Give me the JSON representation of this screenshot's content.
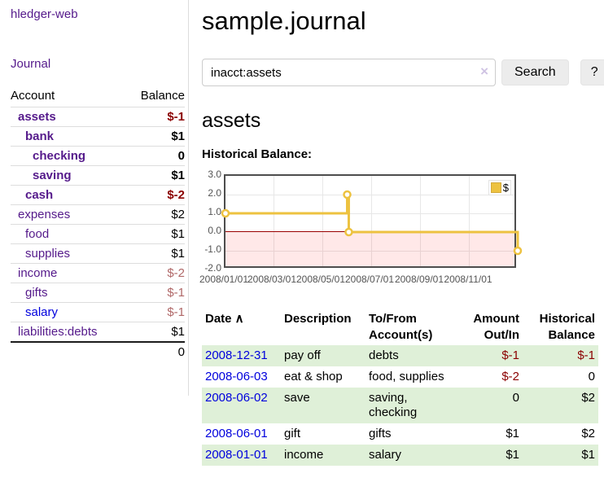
{
  "app": {
    "title": "hledger-web"
  },
  "colors": {
    "link_purple": "#551a8b",
    "link_blue": "#0000dd",
    "negative_strong": "#8b0000",
    "negative_soft": "#b06868",
    "row_green": "#dff0d8",
    "chart_line": "#edc240",
    "chart_border": "#4d4d4d",
    "negative_region": "rgba(255,0,0,0.09)",
    "zero_line": "#990000",
    "divider": "#dddddd"
  },
  "sidebar": {
    "nav_journal": "Journal",
    "accounts_table": {
      "headers": {
        "account": "Account",
        "balance": "Balance"
      },
      "rows": [
        {
          "account": "assets",
          "balance": "$-1",
          "depth": 1,
          "bold": true,
          "negative": true,
          "unvisited": false
        },
        {
          "account": "bank",
          "balance": "$1",
          "depth": 2,
          "bold": true,
          "negative": false,
          "unvisited": false
        },
        {
          "account": "checking",
          "balance": "0",
          "depth": 3,
          "bold": true,
          "negative": false,
          "unvisited": false
        },
        {
          "account": "saving",
          "balance": "$1",
          "depth": 3,
          "bold": true,
          "negative": false,
          "unvisited": false
        },
        {
          "account": "cash",
          "balance": "$-2",
          "depth": 2,
          "bold": true,
          "negative": true,
          "unvisited": false
        },
        {
          "account": "expenses",
          "balance": "$2",
          "depth": 1,
          "bold": false,
          "negative": false,
          "unvisited": false
        },
        {
          "account": "food",
          "balance": "$1",
          "depth": 2,
          "bold": false,
          "negative": false,
          "unvisited": false
        },
        {
          "account": "supplies",
          "balance": "$1",
          "depth": 2,
          "bold": false,
          "negative": false,
          "unvisited": false
        },
        {
          "account": "income",
          "balance": "$-2",
          "depth": 1,
          "bold": false,
          "negative": true,
          "unvisited": false
        },
        {
          "account": "gifts",
          "balance": "$-1",
          "depth": 2,
          "bold": false,
          "negative": true,
          "unvisited": false
        },
        {
          "account": "salary",
          "balance": "$-1",
          "depth": 2,
          "bold": false,
          "negative": true,
          "unvisited": true
        },
        {
          "account": "liabilities:debts",
          "balance": "$1",
          "depth": 1,
          "bold": false,
          "negative": false,
          "unvisited": false
        }
      ],
      "total": "0"
    }
  },
  "main": {
    "title": "sample.journal",
    "search": {
      "value": "inacct:assets",
      "clear_icon": "×",
      "search_button": "Search",
      "help_button": "?"
    },
    "account_heading": "assets",
    "chart_label": "Historical Balance:"
  },
  "chart_data": {
    "type": "line",
    "steps": true,
    "title": "Historical Balance",
    "series": [
      {
        "name": "$",
        "color": "#edc240",
        "points": [
          {
            "date": "2008-01-01",
            "day": 0,
            "value": 1
          },
          {
            "date": "2008-06-01",
            "day": 152,
            "value": 2
          },
          {
            "date": "2008-06-03",
            "day": 154,
            "value": 0
          },
          {
            "date": "2008-12-31",
            "day": 365,
            "value": -1
          }
        ]
      }
    ],
    "xlim": {
      "min_day": 0,
      "max_day": 365
    },
    "ylim": [
      -2,
      3
    ],
    "x_ticks": [
      {
        "day": 0,
        "label": "2008/01/01"
      },
      {
        "day": 60,
        "label": "2008/03/01"
      },
      {
        "day": 121,
        "label": "2008/05/01"
      },
      {
        "day": 182,
        "label": "2008/07/01"
      },
      {
        "day": 244,
        "label": "2008/09/01"
      },
      {
        "day": 305,
        "label": "2008/11/01"
      }
    ],
    "y_ticks": [
      {
        "value": 3,
        "label": "3.0"
      },
      {
        "value": 2,
        "label": "2.0"
      },
      {
        "value": 1,
        "label": "1.0"
      },
      {
        "value": 0,
        "label": "0.0"
      },
      {
        "value": -1,
        "label": "-1.0"
      },
      {
        "value": -2,
        "label": "-2.0"
      }
    ],
    "grid": true,
    "legend_position": "top-right"
  },
  "register": {
    "headers": [
      {
        "label": "Date",
        "sort_icon": "∧",
        "align": "left"
      },
      {
        "label": "Description",
        "align": "left"
      },
      {
        "label": "To/From Account(s)",
        "align": "left"
      },
      {
        "label": "Amount Out/In",
        "align": "right"
      },
      {
        "label": "Historical Balance",
        "align": "right"
      }
    ],
    "rows": [
      {
        "date": "2008-12-31",
        "description": "pay off",
        "accounts": "debts",
        "amount": "$-1",
        "amount_negative": true,
        "balance": "$-1",
        "balance_negative": true
      },
      {
        "date": "2008-06-03",
        "description": "eat & shop",
        "accounts": "food, supplies",
        "amount": "$-2",
        "amount_negative": true,
        "balance": "0",
        "balance_negative": false
      },
      {
        "date": "2008-06-02",
        "description": "save",
        "accounts": "saving, checking",
        "amount": "0",
        "amount_negative": false,
        "balance": "$2",
        "balance_negative": false
      },
      {
        "date": "2008-06-01",
        "description": "gift",
        "accounts": "gifts",
        "amount": "$1",
        "amount_negative": false,
        "balance": "$2",
        "balance_negative": false
      },
      {
        "date": "2008-01-01",
        "description": "income",
        "accounts": "salary",
        "amount": "$1",
        "amount_negative": false,
        "balance": "$1",
        "balance_negative": false
      }
    ]
  }
}
